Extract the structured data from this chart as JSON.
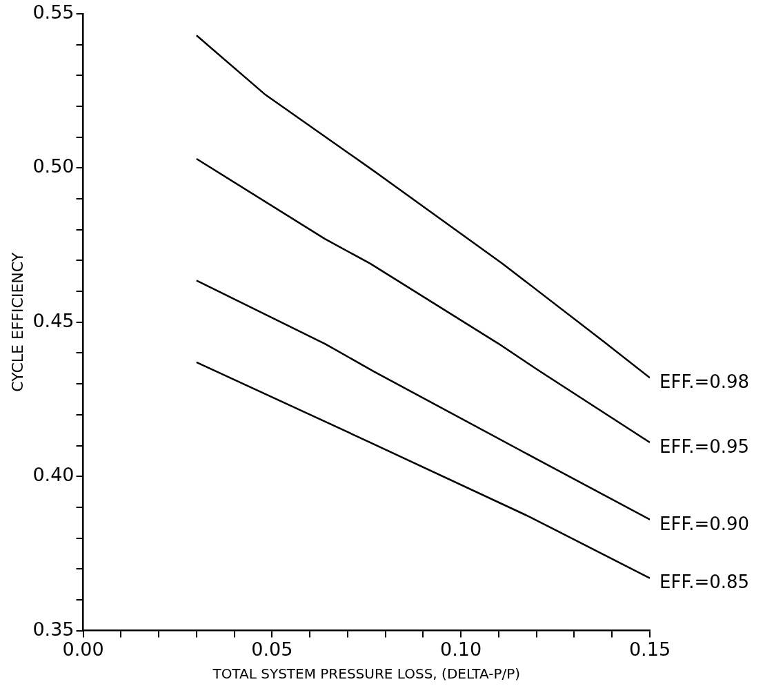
{
  "chart_data": {
    "type": "line",
    "xlabel": "TOTAL SYSTEM PRESSURE LOSS, (DELTA-P/P)",
    "ylabel": "CYCLE EFFICIENCY",
    "xlim": [
      0,
      0.15
    ],
    "ylim": [
      0.35,
      0.55
    ],
    "xticks": [
      {
        "value": 0,
        "label": "0.00"
      },
      {
        "value": 0.01,
        "label": null
      },
      {
        "value": 0.02,
        "label": null
      },
      {
        "value": 0.03,
        "label": null
      },
      {
        "value": 0.04,
        "label": null
      },
      {
        "value": 0.05,
        "label": "0.05"
      },
      {
        "value": 0.06,
        "label": null
      },
      {
        "value": 0.07,
        "label": null
      },
      {
        "value": 0.08,
        "label": null
      },
      {
        "value": 0.09,
        "label": null
      },
      {
        "value": 0.1,
        "label": "0.10"
      },
      {
        "value": 0.11,
        "label": null
      },
      {
        "value": 0.12,
        "label": null
      },
      {
        "value": 0.13,
        "label": null
      },
      {
        "value": 0.14,
        "label": null
      },
      {
        "value": 0.15,
        "label": "0.15"
      }
    ],
    "yticks": [
      {
        "value": 0.35,
        "label": "0.35"
      },
      {
        "value": 0.36,
        "label": null
      },
      {
        "value": 0.37,
        "label": null
      },
      {
        "value": 0.38,
        "label": null
      },
      {
        "value": 0.39,
        "label": null
      },
      {
        "value": 0.4,
        "label": "0.40"
      },
      {
        "value": 0.41,
        "label": null
      },
      {
        "value": 0.42,
        "label": null
      },
      {
        "value": 0.43,
        "label": null
      },
      {
        "value": 0.44,
        "label": null
      },
      {
        "value": 0.45,
        "label": "0.45"
      },
      {
        "value": 0.46,
        "label": null
      },
      {
        "value": 0.47,
        "label": null
      },
      {
        "value": 0.48,
        "label": null
      },
      {
        "value": 0.49,
        "label": null
      },
      {
        "value": 0.5,
        "label": "0.50"
      },
      {
        "value": 0.51,
        "label": null
      },
      {
        "value": 0.52,
        "label": null
      },
      {
        "value": 0.53,
        "label": null
      },
      {
        "value": 0.54,
        "label": null
      },
      {
        "value": 0.55,
        "label": "0.55"
      }
    ],
    "grid": false,
    "legend": false,
    "marker": "none",
    "line_style": "solid",
    "series": [
      {
        "name": "EFF.=0.98",
        "color": "#000000",
        "x": [
          0.03,
          0.048,
          0.077,
          0.111,
          0.138,
          0.15
        ],
        "values": [
          0.543,
          0.524,
          0.499,
          0.469,
          0.4435,
          0.432
        ]
      },
      {
        "name": "EFF.=0.95",
        "color": "#000000",
        "x": [
          0.03,
          0.064,
          0.076,
          0.11,
          0.121,
          0.15
        ],
        "values": [
          0.503,
          0.477,
          0.469,
          0.443,
          0.434,
          0.411
        ]
      },
      {
        "name": "EFF.=0.90",
        "color": "#000000",
        "x": [
          0.03,
          0.064,
          0.077,
          0.121,
          0.15
        ],
        "values": [
          0.4635,
          0.443,
          0.434,
          0.405,
          0.386
        ]
      },
      {
        "name": "EFF.=0.85",
        "color": "#000000",
        "x": [
          0.03,
          0.076,
          0.118,
          0.15
        ],
        "values": [
          0.437,
          0.411,
          0.387,
          0.367
        ]
      }
    ]
  }
}
